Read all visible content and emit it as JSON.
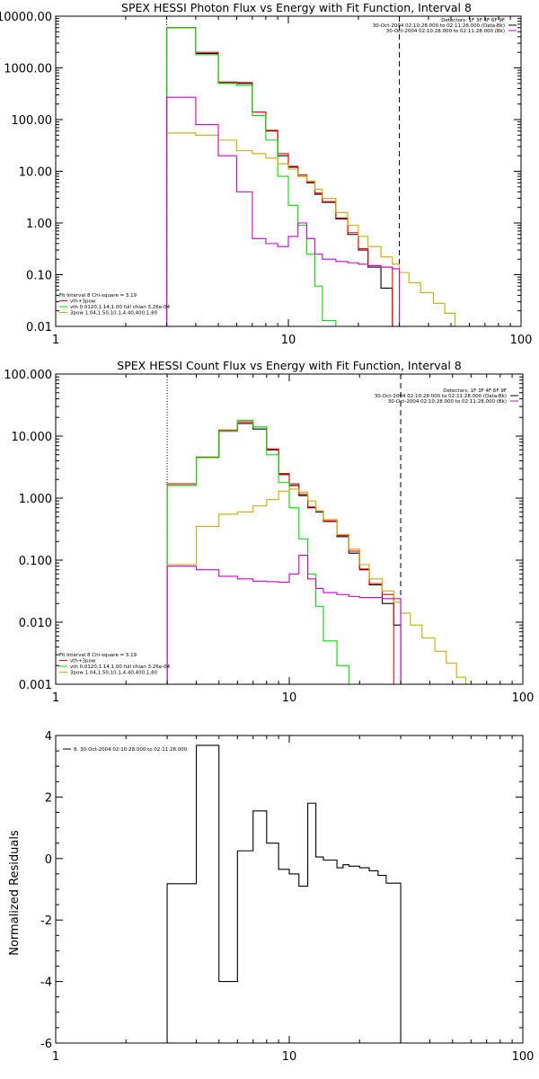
{
  "chart_data": [
    {
      "type": "line",
      "title": "SPEX HESSI Photon Flux vs Energy with Fit Function, Interval 8",
      "xscale": "log",
      "yscale": "log",
      "xlim": [
        1,
        100
      ],
      "ylim": [
        0.01,
        10000
      ],
      "xticks": [
        1,
        10,
        100
      ],
      "xticklabels": [
        "1",
        "10",
        "100"
      ],
      "yticks": [
        0.01,
        0.1,
        1,
        10,
        100,
        1000,
        10000
      ],
      "yticklabels": [
        "0.01",
        "0.10",
        "1.00",
        "10.00",
        "100.00",
        "1000.00",
        "10000.00"
      ],
      "top_legend": [
        {
          "text": "Detectors: 1F 3F 4F 6F 9F",
          "color": null
        },
        {
          "text": "30-Oct-2004 02:10:28.000 to 02:11:28.000 (Data-Bk)",
          "color": "#000000"
        },
        {
          "text": "30-Oct-2004 02:10:28.000 to 02:11:28.000 (Bk)",
          "color": "#cc00cc"
        }
      ],
      "bottom_legend": [
        {
          "text": "Fit Interval  8    Chi-square = 3.19",
          "color": null
        },
        {
          "text": "vth+3pow",
          "color": "#ff0000"
        },
        {
          "text": "vth 0.0120,1.14,1.00  full chian 3.26e-04",
          "color": "#00dd00"
        },
        {
          "text": "3pow 1.04,1.50,10.1,4.40,400,1.80",
          "color": "#ccaa00"
        }
      ],
      "vlines": [
        {
          "x": 3.0,
          "style": "dotted",
          "color": "#000000"
        },
        {
          "x": 30.0,
          "style": "dashed",
          "color": "#000000"
        }
      ],
      "series": [
        {
          "name": "Data-Bk",
          "color": "#000000",
          "x": [
            3,
            4,
            5,
            6,
            7,
            8,
            9,
            10,
            11,
            12,
            13,
            14,
            16,
            18,
            20,
            22,
            25,
            28,
            30
          ],
          "y": [
            6000,
            1900,
            520,
            500,
            140,
            60,
            20,
            12,
            8,
            6,
            3.6,
            2.5,
            1.2,
            0.6,
            0.3,
            0.14,
            0.055,
            null,
            null
          ]
        },
        {
          "name": "vth+3pow",
          "color": "#ff0000",
          "x": [
            3,
            4,
            5,
            6,
            7,
            8,
            9,
            10,
            11,
            12,
            13,
            14,
            16,
            18,
            20,
            22,
            25,
            28,
            30
          ],
          "y": [
            6000,
            2000,
            530,
            520,
            140,
            62,
            22,
            12.5,
            8.5,
            6.2,
            3.8,
            2.6,
            1.25,
            0.65,
            0.32,
            0.15,
            0.14,
            null,
            null
          ]
        },
        {
          "name": "vth",
          "color": "#00dd00",
          "x": [
            3,
            4,
            5,
            6,
            7,
            8,
            9,
            10,
            11,
            12,
            13,
            14,
            16,
            18
          ],
          "y": [
            6000,
            1800,
            500,
            460,
            120,
            40,
            8,
            2.2,
            0.9,
            0.25,
            0.06,
            0.013,
            0.006,
            null
          ]
        },
        {
          "name": "3pow",
          "color": "#ccaa00",
          "x": [
            3,
            4,
            5,
            6,
            7,
            8,
            9,
            10,
            11,
            12,
            13,
            14,
            16,
            18,
            20,
            22,
            25,
            28,
            30,
            33,
            37,
            42,
            47,
            52
          ],
          "y": [
            55,
            50,
            40,
            25,
            22,
            18,
            14,
            11,
            8,
            6.5,
            4.5,
            3,
            1.6,
            0.9,
            0.55,
            0.35,
            0.22,
            0.16,
            0.11,
            0.07,
            0.045,
            0.028,
            0.018,
            0.01
          ]
        },
        {
          "name": "Bk",
          "color": "#cc00cc",
          "x": [
            3,
            4,
            5,
            6,
            7,
            8,
            9,
            10,
            11,
            12,
            13,
            14,
            16,
            18,
            20,
            22,
            25,
            28,
            30
          ],
          "y": [
            270,
            80,
            20,
            4,
            0.5,
            0.4,
            0.35,
            0.55,
            1.0,
            0.5,
            0.25,
            0.2,
            0.18,
            0.17,
            0.16,
            0.15,
            0.14,
            0.13,
            null
          ]
        }
      ]
    },
    {
      "type": "line",
      "title": "SPEX HESSI Count Flux vs Energy with Fit Function, Interval 8",
      "xscale": "log",
      "yscale": "log",
      "xlim": [
        1,
        100
      ],
      "ylim": [
        0.001,
        100
      ],
      "xticks": [
        1,
        10,
        100
      ],
      "xticklabels": [
        "1",
        "10",
        "100"
      ],
      "yticks": [
        0.001,
        0.01,
        0.1,
        1,
        10,
        100
      ],
      "yticklabels": [
        "0.001",
        "0.010",
        "0.100",
        "1.000",
        "10.000",
        "100.000"
      ],
      "top_legend": [
        {
          "text": "Detectors: 1F 3F 4F 6F 9F",
          "color": null
        },
        {
          "text": "30-Oct-2004 02:10:28.000 to 02:11:28.000 (Data-Bk)",
          "color": "#000000"
        },
        {
          "text": "30-Oct-2004 02:10:28.000 to 02:11:28.000 (Bk)",
          "color": "#cc00cc"
        }
      ],
      "bottom_legend": [
        {
          "text": "Fit Interval  8    Chi-square = 3.19",
          "color": null
        },
        {
          "text": "vth+3pow",
          "color": "#ff0000"
        },
        {
          "text": "vth 0.0120,1.14,1.00  full chian 3.26e-04",
          "color": "#00dd00"
        },
        {
          "text": "3pow 1.04,1.50,10.1,4.40,400,1.80",
          "color": "#ccaa00"
        }
      ],
      "vlines": [
        {
          "x": 3.0,
          "style": "dotted",
          "color": "#000000"
        },
        {
          "x": 30.0,
          "style": "dashed",
          "color": "#000000"
        }
      ],
      "series": [
        {
          "name": "Data-Bk",
          "color": "#000000",
          "x": [
            3,
            4,
            5,
            6,
            7,
            8,
            9,
            10,
            11,
            12,
            13,
            14,
            16,
            18,
            20,
            22,
            25,
            28,
            30
          ],
          "y": [
            1.6,
            4.5,
            12,
            16,
            13,
            6,
            2.4,
            1.6,
            1.1,
            0.7,
            0.6,
            0.42,
            0.24,
            0.13,
            0.07,
            0.04,
            0.02,
            0.009,
            null
          ]
        },
        {
          "name": "vth+3pow",
          "color": "#ff0000",
          "x": [
            3,
            4,
            5,
            6,
            7,
            8,
            9,
            10,
            11,
            12,
            13,
            14,
            16,
            18,
            20,
            22,
            25,
            28,
            30
          ],
          "y": [
            1.7,
            4.6,
            12.5,
            17,
            14,
            6.2,
            2.5,
            1.7,
            1.15,
            0.72,
            0.62,
            0.43,
            0.25,
            0.14,
            0.072,
            0.042,
            0.028,
            null,
            null
          ]
        },
        {
          "name": "vth",
          "color": "#00dd00",
          "x": [
            3,
            4,
            5,
            6,
            7,
            8,
            9,
            10,
            11,
            12,
            13,
            14,
            16,
            18
          ],
          "y": [
            1.6,
            4.5,
            12,
            18,
            14,
            5,
            1.8,
            0.7,
            0.22,
            0.06,
            0.018,
            0.005,
            0.002,
            null
          ]
        },
        {
          "name": "3pow",
          "color": "#ccaa00",
          "x": [
            3,
            4,
            5,
            6,
            7,
            8,
            9,
            10,
            11,
            12,
            13,
            14,
            16,
            18,
            20,
            22,
            25,
            28,
            30,
            33,
            37,
            42,
            47,
            52,
            57
          ],
          "y": [
            0.085,
            0.35,
            0.55,
            0.6,
            0.75,
            0.95,
            1.3,
            1.4,
            1.25,
            0.9,
            0.62,
            0.45,
            0.26,
            0.15,
            0.085,
            0.05,
            0.032,
            0.021,
            0.014,
            0.009,
            0.0056,
            0.0034,
            0.0022,
            0.0013,
            0.001
          ]
        },
        {
          "name": "Bk",
          "color": "#cc00cc",
          "x": [
            3,
            4,
            5,
            6,
            7,
            8,
            9,
            10,
            11,
            12,
            13,
            14,
            16,
            18,
            20,
            22,
            25,
            28,
            30
          ],
          "y": [
            0.08,
            0.07,
            0.055,
            0.05,
            0.046,
            0.045,
            0.044,
            0.06,
            0.12,
            0.05,
            0.035,
            0.03,
            0.028,
            0.026,
            0.025,
            0.025,
            0.024,
            0.024,
            null
          ]
        }
      ]
    },
    {
      "type": "line",
      "title": "",
      "xscale": "log",
      "yscale": "linear",
      "xlim": [
        1,
        100
      ],
      "ylim": [
        -6,
        4
      ],
      "ylabel": "Normalized Residuals",
      "xticks": [
        1,
        10,
        100
      ],
      "xticklabels": [
        "1",
        "10",
        "100"
      ],
      "yticks": [
        -6,
        -4,
        -2,
        0,
        2,
        4
      ],
      "yticklabels": [
        "-6",
        "-4",
        "-2",
        "0",
        "2",
        "4"
      ],
      "top_legend": [
        {
          "text": "8. 30-Oct-2004 02:10:28.000 to 02:11:28.000",
          "color": "#000000"
        }
      ],
      "series": [
        {
          "name": "8. 30-Oct-2004 02:10:28.000 to 02:11:28.000",
          "color": "#000000",
          "x": [
            3.0,
            3.5,
            4.0,
            4.5,
            5.0,
            6.0,
            7.0,
            8.0,
            9.0,
            10.0,
            11.0,
            12.0,
            13.0,
            14.0,
            16.0,
            17.0,
            18.0,
            20.0,
            22.0,
            24.0,
            26.0,
            28.0,
            30.0
          ],
          "y": [
            -0.82,
            -0.82,
            3.68,
            3.68,
            -4.0,
            0.25,
            1.55,
            0.5,
            -0.35,
            -0.5,
            -0.9,
            1.8,
            0.05,
            -0.05,
            -0.3,
            -0.2,
            -0.25,
            -0.3,
            -0.4,
            -0.55,
            -0.8,
            -0.8,
            -6.0
          ]
        }
      ]
    }
  ]
}
